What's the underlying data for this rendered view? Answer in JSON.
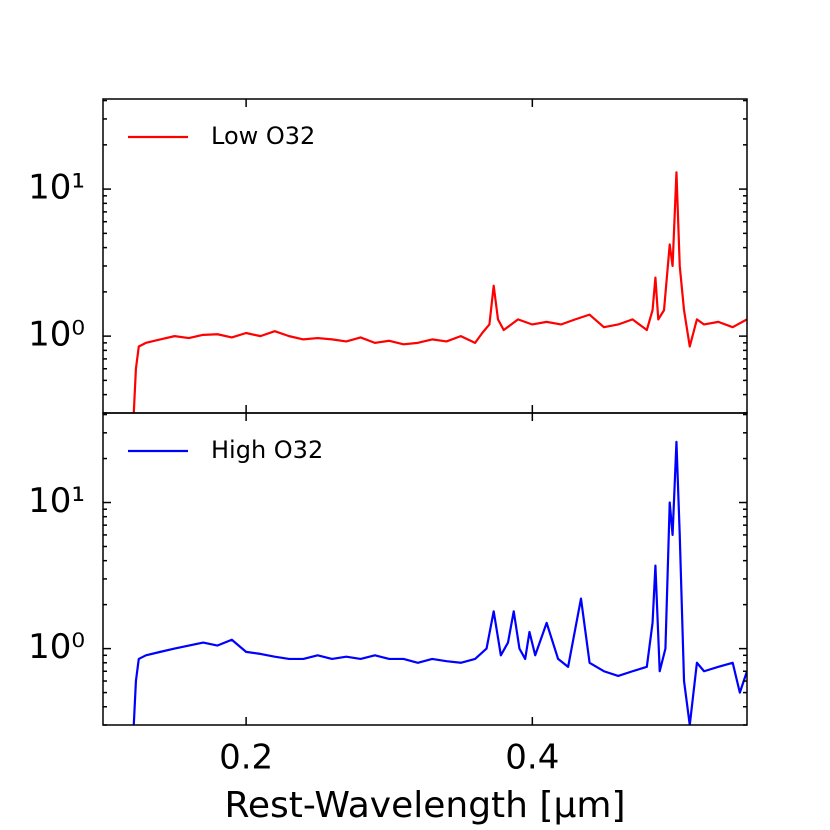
{
  "chart_data": [
    {
      "type": "line",
      "log_y": true,
      "legend": "upper left",
      "xtick_labels": false,
      "xlim": [
        0.1,
        0.55
      ],
      "ylim": [
        0.3,
        41
      ],
      "xticks": [
        0.2,
        0.4
      ],
      "yticks": [
        {
          "value": 1,
          "label": "10⁰"
        },
        {
          "value": 10,
          "label": "10¹"
        }
      ],
      "x": [
        0.1215,
        0.123,
        0.125,
        0.13,
        0.14,
        0.15,
        0.16,
        0.17,
        0.18,
        0.19,
        0.2,
        0.21,
        0.22,
        0.23,
        0.24,
        0.25,
        0.26,
        0.27,
        0.28,
        0.29,
        0.3,
        0.31,
        0.32,
        0.33,
        0.34,
        0.35,
        0.36,
        0.365,
        0.37,
        0.373,
        0.376,
        0.38,
        0.39,
        0.4,
        0.41,
        0.42,
        0.43,
        0.44,
        0.45,
        0.46,
        0.47,
        0.48,
        0.484,
        0.486,
        0.488,
        0.492,
        0.496,
        0.498,
        0.5007,
        0.503,
        0.506,
        0.51,
        0.515,
        0.52,
        0.53,
        0.54,
        0.55
      ],
      "series": [
        {
          "name": "Low O32",
          "color": "#ff0000",
          "values": [
            0.3,
            0.6,
            0.85,
            0.9,
            0.95,
            1.0,
            0.97,
            1.02,
            1.03,
            0.98,
            1.05,
            1.0,
            1.08,
            1.0,
            0.95,
            0.97,
            0.95,
            0.92,
            0.98,
            0.9,
            0.93,
            0.88,
            0.9,
            0.95,
            0.92,
            1.0,
            0.9,
            1.05,
            1.2,
            2.2,
            1.3,
            1.1,
            1.3,
            1.2,
            1.25,
            1.2,
            1.3,
            1.4,
            1.15,
            1.2,
            1.3,
            1.1,
            1.5,
            2.5,
            1.3,
            1.5,
            4.2,
            3.0,
            13,
            3.0,
            1.5,
            0.85,
            1.3,
            1.2,
            1.25,
            1.15,
            1.3
          ]
        }
      ]
    },
    {
      "type": "line",
      "log_y": true,
      "legend": "upper left",
      "xtick_labels": true,
      "xlabel": "Rest-Wavelength [μm]",
      "xlim": [
        0.1,
        0.55
      ],
      "ylim": [
        0.3,
        41
      ],
      "xticks": [
        0.2,
        0.4
      ],
      "yticks": [
        {
          "value": 1,
          "label": "10⁰"
        },
        {
          "value": 10,
          "label": "10¹"
        }
      ],
      "x": [
        0.1215,
        0.123,
        0.125,
        0.13,
        0.14,
        0.15,
        0.16,
        0.17,
        0.18,
        0.19,
        0.2,
        0.21,
        0.22,
        0.23,
        0.24,
        0.25,
        0.26,
        0.27,
        0.28,
        0.29,
        0.3,
        0.31,
        0.32,
        0.33,
        0.34,
        0.35,
        0.36,
        0.368,
        0.373,
        0.378,
        0.383,
        0.387,
        0.391,
        0.395,
        0.398,
        0.402,
        0.41,
        0.418,
        0.425,
        0.434,
        0.44,
        0.45,
        0.46,
        0.47,
        0.48,
        0.484,
        0.486,
        0.489,
        0.493,
        0.496,
        0.498,
        0.5007,
        0.503,
        0.506,
        0.51,
        0.515,
        0.52,
        0.53,
        0.54,
        0.545,
        0.55
      ],
      "series": [
        {
          "name": "High O32",
          "color": "#0000ff",
          "values": [
            0.3,
            0.6,
            0.85,
            0.9,
            0.95,
            1.0,
            1.05,
            1.1,
            1.05,
            1.15,
            0.95,
            0.92,
            0.88,
            0.85,
            0.85,
            0.9,
            0.85,
            0.88,
            0.85,
            0.9,
            0.85,
            0.85,
            0.8,
            0.85,
            0.82,
            0.8,
            0.85,
            1.0,
            1.8,
            0.9,
            1.1,
            1.8,
            1.0,
            0.85,
            1.3,
            0.9,
            1.5,
            0.85,
            0.75,
            2.2,
            0.8,
            0.7,
            0.65,
            0.7,
            0.75,
            1.5,
            3.7,
            0.7,
            1.0,
            10,
            6,
            26,
            6,
            0.6,
            0.3,
            0.8,
            0.7,
            0.75,
            0.8,
            0.5,
            0.7
          ]
        }
      ]
    }
  ]
}
